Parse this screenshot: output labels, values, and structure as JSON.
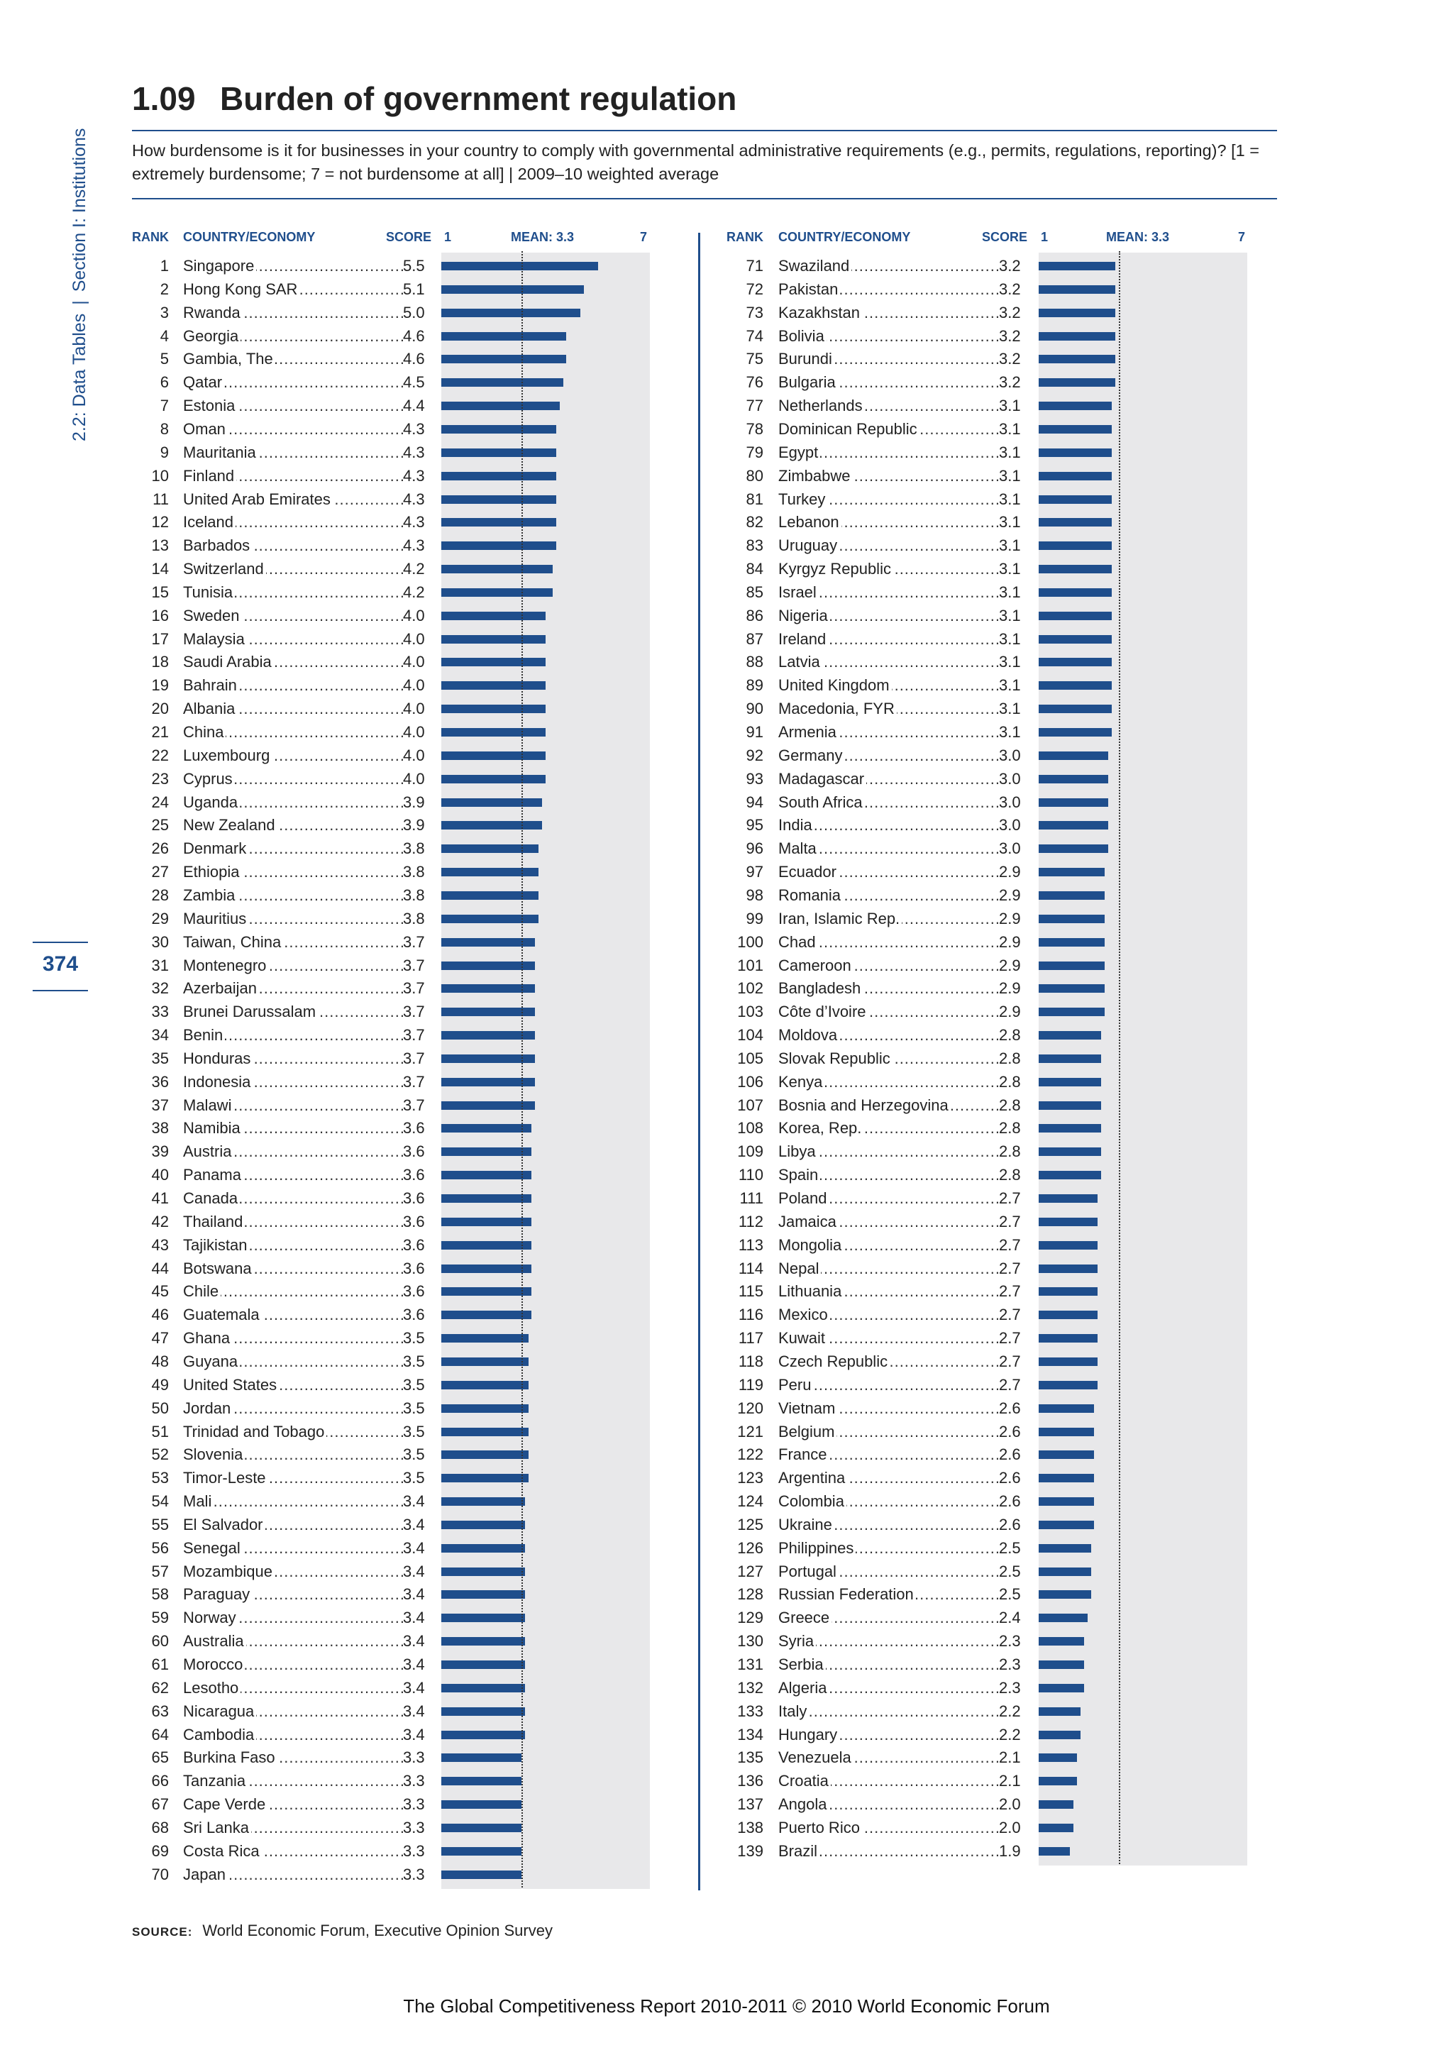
{
  "side": {
    "part1": "2.2: Data Tables",
    "part2": "Section I: Institutions"
  },
  "page_number": "374",
  "header": {
    "number": "1.09",
    "title": "Burden of government regulation",
    "subtitle": "How burdensome is it for businesses in your country to comply with governmental administrative requirements (e.g., permits, regulations, reporting)? [1 = extremely burdensome; 7 = not burdensome at all]  |  2009–10 weighted average"
  },
  "columns": {
    "rank": "RANK",
    "country": "COUNTRY/ECONOMY",
    "score": "SCORE",
    "min": "1",
    "mean": "MEAN: 3.3",
    "max": "7"
  },
  "chart_data": {
    "type": "bar",
    "orientation": "horizontal",
    "xlim": [
      1,
      7
    ],
    "mean": 3.3,
    "rows": [
      {
        "rank": "1",
        "country": "Singapore",
        "score": 5.5
      },
      {
        "rank": "2",
        "country": "Hong Kong SAR",
        "score": 5.1
      },
      {
        "rank": "3",
        "country": "Rwanda",
        "score": 5.0
      },
      {
        "rank": "4",
        "country": "Georgia",
        "score": 4.6
      },
      {
        "rank": "5",
        "country": "Gambia, The",
        "score": 4.6
      },
      {
        "rank": "6",
        "country": "Qatar",
        "score": 4.5
      },
      {
        "rank": "7",
        "country": "Estonia",
        "score": 4.4
      },
      {
        "rank": "8",
        "country": "Oman",
        "score": 4.3
      },
      {
        "rank": "9",
        "country": "Mauritania",
        "score": 4.3
      },
      {
        "rank": "10",
        "country": "Finland",
        "score": 4.3
      },
      {
        "rank": "11",
        "country": "United Arab Emirates",
        "score": 4.3
      },
      {
        "rank": "12",
        "country": "Iceland",
        "score": 4.3
      },
      {
        "rank": "13",
        "country": "Barbados",
        "score": 4.3
      },
      {
        "rank": "14",
        "country": "Switzerland",
        "score": 4.2
      },
      {
        "rank": "15",
        "country": "Tunisia",
        "score": 4.2
      },
      {
        "rank": "16",
        "country": "Sweden",
        "score": 4.0
      },
      {
        "rank": "17",
        "country": "Malaysia",
        "score": 4.0
      },
      {
        "rank": "18",
        "country": "Saudi Arabia",
        "score": 4.0
      },
      {
        "rank": "19",
        "country": "Bahrain",
        "score": 4.0
      },
      {
        "rank": "20",
        "country": "Albania",
        "score": 4.0
      },
      {
        "rank": "21",
        "country": "China",
        "score": 4.0
      },
      {
        "rank": "22",
        "country": "Luxembourg",
        "score": 4.0
      },
      {
        "rank": "23",
        "country": "Cyprus",
        "score": 4.0
      },
      {
        "rank": "24",
        "country": "Uganda",
        "score": 3.9
      },
      {
        "rank": "25",
        "country": "New Zealand",
        "score": 3.9
      },
      {
        "rank": "26",
        "country": "Denmark",
        "score": 3.8
      },
      {
        "rank": "27",
        "country": "Ethiopia",
        "score": 3.8
      },
      {
        "rank": "28",
        "country": "Zambia",
        "score": 3.8
      },
      {
        "rank": "29",
        "country": "Mauritius",
        "score": 3.8
      },
      {
        "rank": "30",
        "country": "Taiwan, China",
        "score": 3.7
      },
      {
        "rank": "31",
        "country": "Montenegro",
        "score": 3.7
      },
      {
        "rank": "32",
        "country": "Azerbaijan",
        "score": 3.7
      },
      {
        "rank": "33",
        "country": "Brunei Darussalam",
        "score": 3.7
      },
      {
        "rank": "34",
        "country": "Benin",
        "score": 3.7
      },
      {
        "rank": "35",
        "country": "Honduras",
        "score": 3.7
      },
      {
        "rank": "36",
        "country": "Indonesia",
        "score": 3.7
      },
      {
        "rank": "37",
        "country": "Malawi",
        "score": 3.7
      },
      {
        "rank": "38",
        "country": "Namibia",
        "score": 3.6
      },
      {
        "rank": "39",
        "country": "Austria",
        "score": 3.6
      },
      {
        "rank": "40",
        "country": "Panama",
        "score": 3.6
      },
      {
        "rank": "41",
        "country": "Canada",
        "score": 3.6
      },
      {
        "rank": "42",
        "country": "Thailand",
        "score": 3.6
      },
      {
        "rank": "43",
        "country": "Tajikistan",
        "score": 3.6
      },
      {
        "rank": "44",
        "country": "Botswana",
        "score": 3.6
      },
      {
        "rank": "45",
        "country": "Chile",
        "score": 3.6
      },
      {
        "rank": "46",
        "country": "Guatemala",
        "score": 3.6
      },
      {
        "rank": "47",
        "country": "Ghana",
        "score": 3.5
      },
      {
        "rank": "48",
        "country": "Guyana",
        "score": 3.5
      },
      {
        "rank": "49",
        "country": "United States",
        "score": 3.5
      },
      {
        "rank": "50",
        "country": "Jordan",
        "score": 3.5
      },
      {
        "rank": "51",
        "country": "Trinidad and Tobago",
        "score": 3.5
      },
      {
        "rank": "52",
        "country": "Slovenia",
        "score": 3.5
      },
      {
        "rank": "53",
        "country": "Timor-Leste",
        "score": 3.5
      },
      {
        "rank": "54",
        "country": "Mali",
        "score": 3.4
      },
      {
        "rank": "55",
        "country": "El Salvador",
        "score": 3.4
      },
      {
        "rank": "56",
        "country": "Senegal",
        "score": 3.4
      },
      {
        "rank": "57",
        "country": "Mozambique",
        "score": 3.4
      },
      {
        "rank": "58",
        "country": "Paraguay",
        "score": 3.4
      },
      {
        "rank": "59",
        "country": "Norway",
        "score": 3.4
      },
      {
        "rank": "60",
        "country": "Australia",
        "score": 3.4
      },
      {
        "rank": "61",
        "country": "Morocco",
        "score": 3.4
      },
      {
        "rank": "62",
        "country": "Lesotho",
        "score": 3.4
      },
      {
        "rank": "63",
        "country": "Nicaragua",
        "score": 3.4
      },
      {
        "rank": "64",
        "country": "Cambodia",
        "score": 3.4
      },
      {
        "rank": "65",
        "country": "Burkina Faso",
        "score": 3.3
      },
      {
        "rank": "66",
        "country": "Tanzania",
        "score": 3.3
      },
      {
        "rank": "67",
        "country": "Cape Verde",
        "score": 3.3
      },
      {
        "rank": "68",
        "country": "Sri Lanka",
        "score": 3.3
      },
      {
        "rank": "69",
        "country": "Costa Rica",
        "score": 3.3
      },
      {
        "rank": "70",
        "country": "Japan",
        "score": 3.3
      },
      {
        "rank": "71",
        "country": "Swaziland",
        "score": 3.2
      },
      {
        "rank": "72",
        "country": "Pakistan",
        "score": 3.2
      },
      {
        "rank": "73",
        "country": "Kazakhstan",
        "score": 3.2
      },
      {
        "rank": "74",
        "country": "Bolivia",
        "score": 3.2
      },
      {
        "rank": "75",
        "country": "Burundi",
        "score": 3.2
      },
      {
        "rank": "76",
        "country": "Bulgaria",
        "score": 3.2
      },
      {
        "rank": "77",
        "country": "Netherlands",
        "score": 3.1
      },
      {
        "rank": "78",
        "country": "Dominican Republic",
        "score": 3.1
      },
      {
        "rank": "79",
        "country": "Egypt",
        "score": 3.1
      },
      {
        "rank": "80",
        "country": "Zimbabwe",
        "score": 3.1
      },
      {
        "rank": "81",
        "country": "Turkey",
        "score": 3.1
      },
      {
        "rank": "82",
        "country": "Lebanon",
        "score": 3.1
      },
      {
        "rank": "83",
        "country": "Uruguay",
        "score": 3.1
      },
      {
        "rank": "84",
        "country": "Kyrgyz Republic",
        "score": 3.1
      },
      {
        "rank": "85",
        "country": "Israel",
        "score": 3.1
      },
      {
        "rank": "86",
        "country": "Nigeria",
        "score": 3.1
      },
      {
        "rank": "87",
        "country": "Ireland",
        "score": 3.1
      },
      {
        "rank": "88",
        "country": "Latvia",
        "score": 3.1
      },
      {
        "rank": "89",
        "country": "United Kingdom",
        "score": 3.1
      },
      {
        "rank": "90",
        "country": "Macedonia, FYR",
        "score": 3.1
      },
      {
        "rank": "91",
        "country": "Armenia",
        "score": 3.1
      },
      {
        "rank": "92",
        "country": "Germany",
        "score": 3.0
      },
      {
        "rank": "93",
        "country": "Madagascar",
        "score": 3.0
      },
      {
        "rank": "94",
        "country": "South Africa",
        "score": 3.0
      },
      {
        "rank": "95",
        "country": "India",
        "score": 3.0
      },
      {
        "rank": "96",
        "country": "Malta",
        "score": 3.0
      },
      {
        "rank": "97",
        "country": "Ecuador",
        "score": 2.9
      },
      {
        "rank": "98",
        "country": "Romania",
        "score": 2.9
      },
      {
        "rank": "99",
        "country": "Iran, Islamic Rep.",
        "score": 2.9
      },
      {
        "rank": "100",
        "country": "Chad",
        "score": 2.9
      },
      {
        "rank": "101",
        "country": "Cameroon",
        "score": 2.9
      },
      {
        "rank": "102",
        "country": "Bangladesh",
        "score": 2.9
      },
      {
        "rank": "103",
        "country": "Côte d’Ivoire",
        "score": 2.9
      },
      {
        "rank": "104",
        "country": "Moldova",
        "score": 2.8
      },
      {
        "rank": "105",
        "country": "Slovak Republic",
        "score": 2.8
      },
      {
        "rank": "106",
        "country": "Kenya",
        "score": 2.8
      },
      {
        "rank": "107",
        "country": "Bosnia and Herzegovina",
        "score": 2.8
      },
      {
        "rank": "108",
        "country": "Korea, Rep.",
        "score": 2.8
      },
      {
        "rank": "109",
        "country": "Libya",
        "score": 2.8
      },
      {
        "rank": "110",
        "country": "Spain",
        "score": 2.8
      },
      {
        "rank": "111",
        "country": "Poland",
        "score": 2.7
      },
      {
        "rank": "112",
        "country": "Jamaica",
        "score": 2.7
      },
      {
        "rank": "113",
        "country": "Mongolia",
        "score": 2.7
      },
      {
        "rank": "114",
        "country": "Nepal",
        "score": 2.7
      },
      {
        "rank": "115",
        "country": "Lithuania",
        "score": 2.7
      },
      {
        "rank": "116",
        "country": "Mexico",
        "score": 2.7
      },
      {
        "rank": "117",
        "country": "Kuwait",
        "score": 2.7
      },
      {
        "rank": "118",
        "country": "Czech Republic",
        "score": 2.7
      },
      {
        "rank": "119",
        "country": "Peru",
        "score": 2.7
      },
      {
        "rank": "120",
        "country": "Vietnam",
        "score": 2.6
      },
      {
        "rank": "121",
        "country": "Belgium",
        "score": 2.6
      },
      {
        "rank": "122",
        "country": "France",
        "score": 2.6
      },
      {
        "rank": "123",
        "country": "Argentina",
        "score": 2.6
      },
      {
        "rank": "124",
        "country": "Colombia",
        "score": 2.6
      },
      {
        "rank": "125",
        "country": "Ukraine",
        "score": 2.6
      },
      {
        "rank": "126",
        "country": "Philippines",
        "score": 2.5
      },
      {
        "rank": "127",
        "country": "Portugal",
        "score": 2.5
      },
      {
        "rank": "128",
        "country": "Russian Federation",
        "score": 2.5
      },
      {
        "rank": "129",
        "country": "Greece",
        "score": 2.4
      },
      {
        "rank": "130",
        "country": "Syria",
        "score": 2.3
      },
      {
        "rank": "131",
        "country": "Serbia",
        "score": 2.3
      },
      {
        "rank": "132",
        "country": "Algeria",
        "score": 2.3
      },
      {
        "rank": "133",
        "country": "Italy",
        "score": 2.2
      },
      {
        "rank": "134",
        "country": "Hungary",
        "score": 2.2
      },
      {
        "rank": "135",
        "country": "Venezuela",
        "score": 2.1
      },
      {
        "rank": "136",
        "country": "Croatia",
        "score": 2.1
      },
      {
        "rank": "137",
        "country": "Angola",
        "score": 2.0
      },
      {
        "rank": "138",
        "country": "Puerto Rico",
        "score": 2.0
      },
      {
        "rank": "139",
        "country": "Brazil",
        "score": 1.9
      }
    ]
  },
  "source": {
    "label": "SOURCE:",
    "text": "World Economic Forum, Executive Opinion Survey"
  },
  "footer": "The Global Competitiveness Report 2010-2011 © 2010 World Economic Forum",
  "colors": {
    "accent": "#1f4e8c",
    "panel": "#e8e8ea"
  }
}
